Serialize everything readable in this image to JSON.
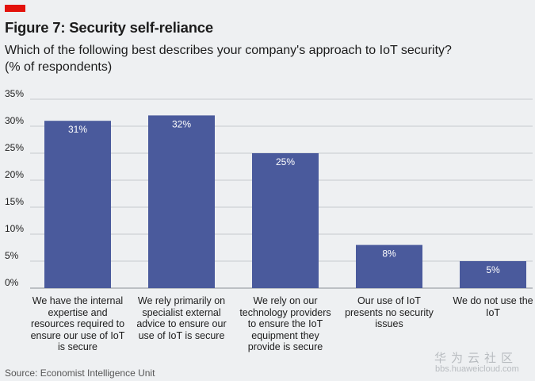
{
  "header": {
    "title": "Figure 7: Security self-reliance",
    "subtitle_line1": "Which of the following best describes your company's approach to IoT security?",
    "subtitle_line2": "(% of respondents)"
  },
  "chart_data": {
    "type": "bar",
    "title": "Figure 7: Security self-reliance",
    "ylabel": "% of respondents",
    "xlabel": "",
    "ylim": [
      0,
      35
    ],
    "yticks": [
      0,
      5,
      10,
      15,
      20,
      25,
      30,
      35
    ],
    "ytick_labels": [
      "0%",
      "5%",
      "10%",
      "15%",
      "20%",
      "25%",
      "30%",
      "35%"
    ],
    "grid": true,
    "categories": [
      "We have the internal expertise and resources required to ensure our use of IoT is secure",
      "We rely primarily on specialist external advice to ensure our use of IoT is secure",
      "We rely on our technology providers to ensure the IoT equipment they provide is secure",
      "Our use of IoT presents no security issues",
      "We do not use the IoT"
    ],
    "category_lines": [
      [
        "We have the internal",
        "expertise and",
        "resources required to",
        "ensure our use of IoT",
        "is secure"
      ],
      [
        "We rely primarily on",
        "specialist external",
        "advice to ensure our",
        "use of IoT is secure"
      ],
      [
        "We rely on our",
        "technology providers",
        "to ensure the IoT",
        "equipment they",
        "provide is secure"
      ],
      [
        "Our use of IoT",
        "presents no security",
        "issues"
      ],
      [
        "We do not use the",
        "IoT"
      ]
    ],
    "values": [
      31,
      32,
      25,
      8,
      5
    ],
    "data_labels": [
      "31%",
      "32%",
      "25%",
      "8%",
      "5%"
    ],
    "bar_color": "#4a5a9c"
  },
  "footer": {
    "source": "Source: Economist Intelligence Unit"
  },
  "watermark": {
    "cn": "华为云社区",
    "url": "bbs.huaweicloud.com"
  },
  "colors": {
    "accent": "#e3120b",
    "bar": "#4a5a9c",
    "background": "#eef0f2",
    "grid": "#c6cacf"
  }
}
